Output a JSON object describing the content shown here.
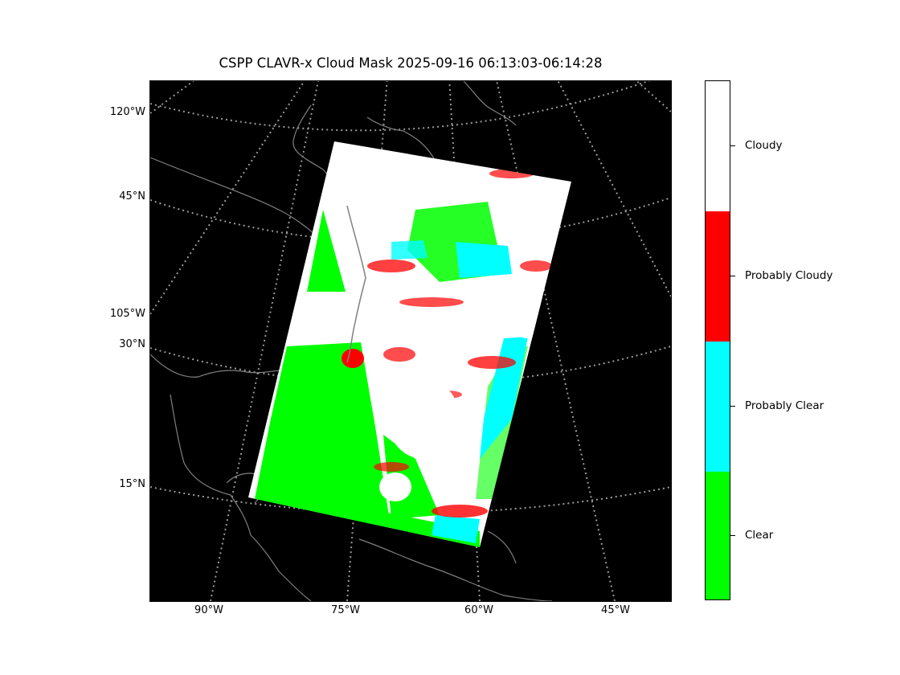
{
  "title": "CSPP CLAVR-x Cloud Mask 2025-09-16 06:13:03-06:14:28",
  "map": {
    "background_color": "#000000",
    "coastline_color": "#808080",
    "graticule_color": "#9a9a9a",
    "lat_labels": [
      "120°W",
      "45°N",
      "105°W",
      "30°N",
      "15°N"
    ],
    "lon_labels": [
      "90°W",
      "75°W",
      "60°W",
      "45°W"
    ]
  },
  "colorbar": {
    "categories": [
      {
        "label": "Cloudy",
        "color": "#ffffff"
      },
      {
        "label": "Probably Cloudy",
        "color": "#ff0000"
      },
      {
        "label": "Probably Clear",
        "color": "#00ffff"
      },
      {
        "label": "Clear",
        "color": "#00ff00"
      }
    ]
  }
}
